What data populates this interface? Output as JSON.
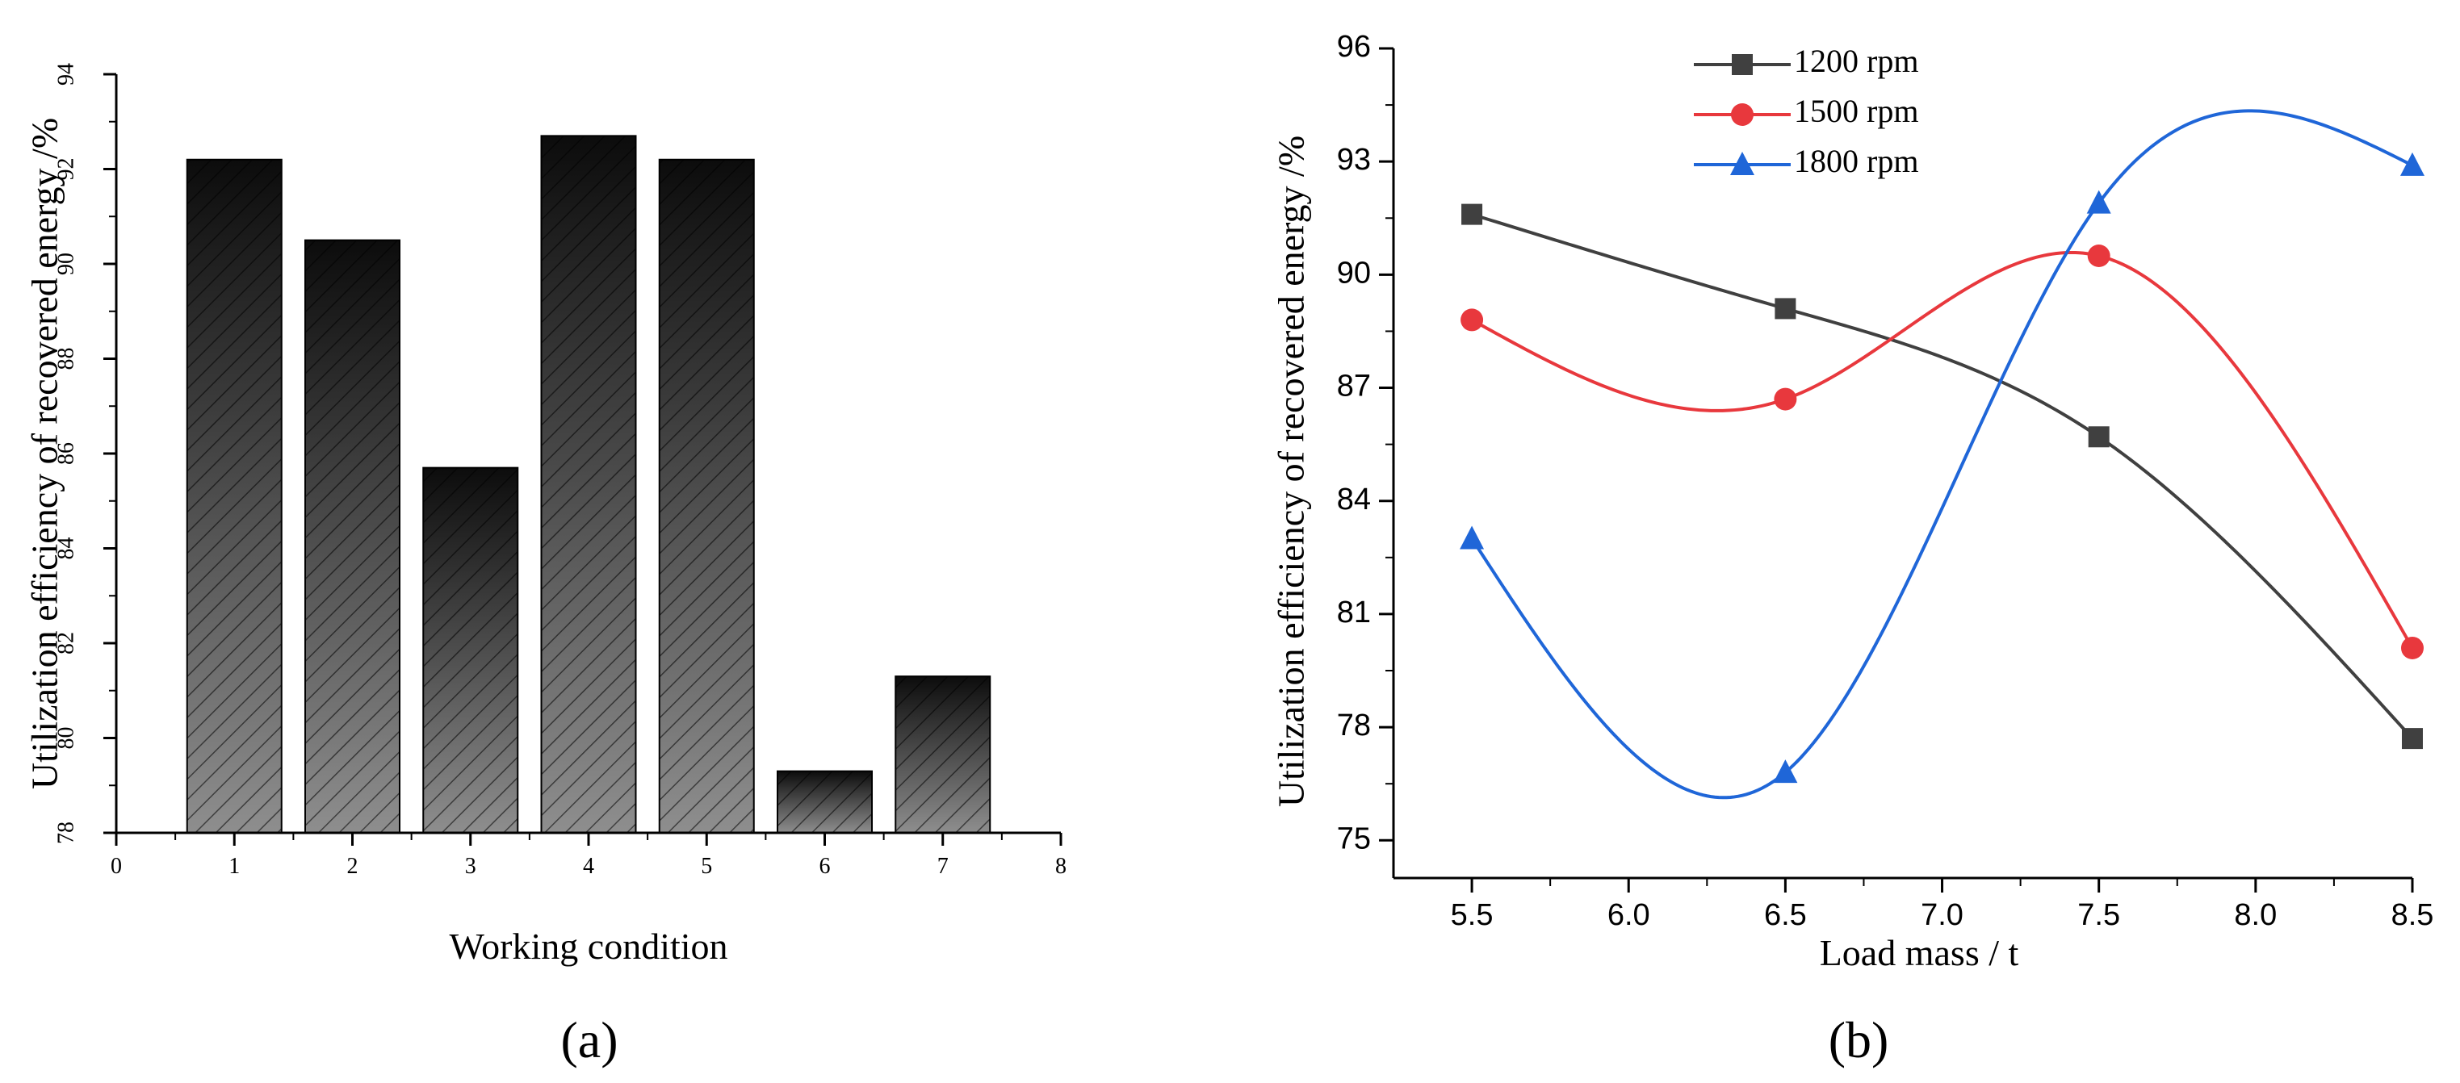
{
  "figure": {
    "panel_labels": [
      "(a)",
      "(b)"
    ]
  },
  "chart_data": [
    {
      "type": "bar",
      "title": "",
      "xlabel": "Working condition",
      "ylabel": "Utilization efficiency of recovered energy /%",
      "categories": [
        1,
        2,
        3,
        4,
        5,
        6,
        7
      ],
      "values": [
        92.2,
        90.5,
        85.7,
        92.7,
        92.2,
        79.3,
        81.3
      ],
      "xlim": [
        0,
        8
      ],
      "ylim": [
        78,
        94
      ],
      "xticks": [
        0,
        1,
        2,
        3,
        4,
        5,
        6,
        7,
        8
      ],
      "yticks": [
        78,
        80,
        82,
        84,
        86,
        88,
        90,
        92,
        94
      ],
      "grid": false,
      "fill": "hatched gradient, black top to gray bottom"
    },
    {
      "type": "line",
      "title": "",
      "xlabel": "Load mass / t",
      "ylabel": "Utilization efficiency of recovered energy /%",
      "x": [
        5.5,
        6.5,
        7.5,
        8.5
      ],
      "xlim": [
        5.25,
        8.5
      ],
      "ylim": [
        74,
        96
      ],
      "xticks": [
        5.5,
        6.0,
        6.5,
        7.0,
        7.5,
        8.0,
        8.5
      ],
      "yticks": [
        75,
        78,
        81,
        84,
        87,
        90,
        93,
        96
      ],
      "grid": false,
      "legend_position": "top-left",
      "smooth": true,
      "series": [
        {
          "name": "1200 rpm",
          "values": [
            91.6,
            89.1,
            85.7,
            77.7
          ],
          "color": "#404040",
          "marker": "square"
        },
        {
          "name": "1500 rpm",
          "values": [
            88.8,
            86.7,
            90.5,
            80.1
          ],
          "color": "#e8383d",
          "marker": "circle"
        },
        {
          "name": "1800 rpm",
          "values": [
            83.0,
            76.8,
            91.9,
            92.9
          ],
          "color": "#1f66d8",
          "marker": "triangle"
        }
      ]
    }
  ]
}
